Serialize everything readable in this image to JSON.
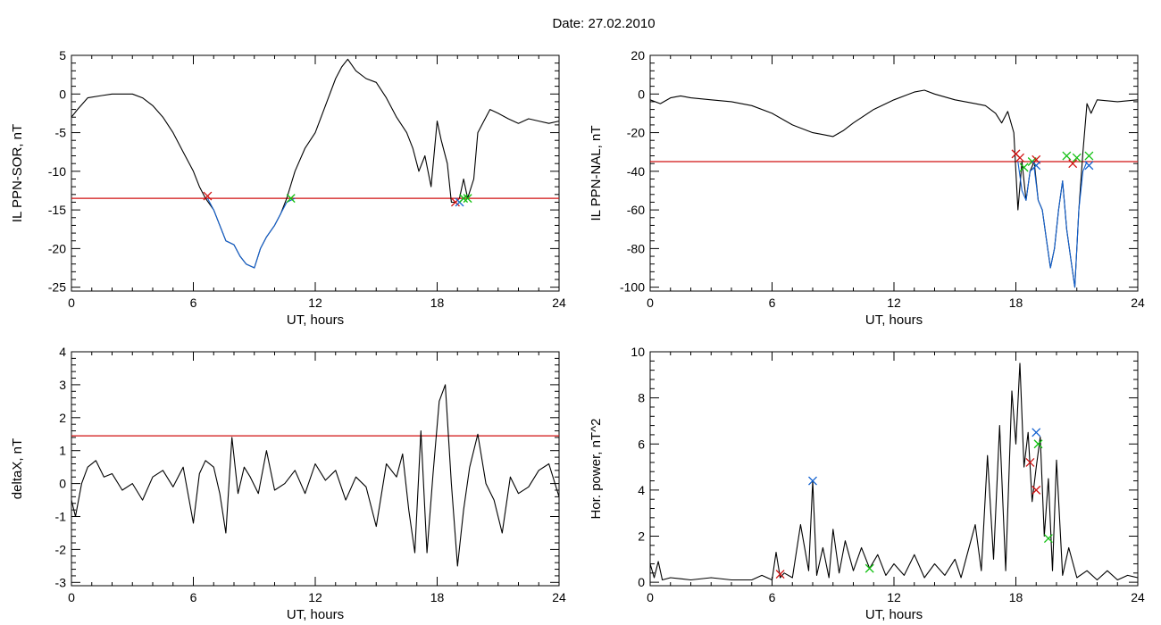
{
  "figure": {
    "title": "Date:  27.02.2010"
  },
  "colors": {
    "trace": "#000000",
    "threshold": "#d01010",
    "highlight": "#1060d0",
    "marker_red": "#d01010",
    "marker_green": "#10c010",
    "marker_blue": "#1060d0"
  },
  "chart_data": [
    {
      "type": "line",
      "xlabel": "UT, hours",
      "ylabel": "IL PPN-SOR, nT",
      "xlim": [
        0,
        24
      ],
      "ylim": [
        -25.5,
        5
      ],
      "xticks": [
        0,
        6,
        12,
        18,
        24
      ],
      "yticks": [
        5,
        0,
        -5,
        -10,
        -15,
        -20,
        -25
      ],
      "threshold": -13.5,
      "series": [
        {
          "color": "black",
          "x": [
            0,
            0.3,
            0.8,
            1.5,
            2,
            2.5,
            3,
            3.5,
            4,
            4.5,
            5,
            5.5,
            6,
            6.3,
            6.6,
            7,
            7.3,
            7.6,
            8,
            8.3,
            8.6,
            9,
            9.3,
            9.6,
            10,
            10.3,
            10.6,
            11,
            11.5,
            12,
            12.5,
            13,
            13.3,
            13.6,
            14,
            14.5,
            15,
            15.5,
            16,
            16.5,
            16.8,
            17.1,
            17.4,
            17.7,
            18,
            18.2,
            18.5,
            18.7,
            18.9,
            19.1,
            19.3,
            19.5,
            19.8,
            20,
            20.3,
            20.6,
            21,
            21.5,
            22,
            22.5,
            23,
            23.5,
            24
          ],
          "y": [
            -3,
            -2,
            -0.5,
            -0.2,
            0,
            0,
            0,
            -0.5,
            -1.5,
            -3,
            -5,
            -7.5,
            -10,
            -12,
            -13.5,
            -15,
            -17,
            -19,
            -19.5,
            -21,
            -22,
            -22.5,
            -20,
            -18.5,
            -17,
            -15.5,
            -13.5,
            -10,
            -7,
            -5,
            -1.5,
            2,
            3.5,
            4.5,
            3,
            2,
            1.5,
            -0.5,
            -3,
            -5,
            -7,
            -10,
            -8,
            -12,
            -3.5,
            -6,
            -9,
            -14,
            -14,
            -13.5,
            -11,
            -13.5,
            -11,
            -5,
            -3.5,
            -2,
            -2.5,
            -3.2,
            -3.8,
            -3.2,
            -3.5,
            -3.8,
            -3.5
          ]
        },
        {
          "color": "blue",
          "x": [
            6.7,
            7,
            7.3,
            7.6,
            8,
            8.3,
            8.6,
            9,
            9.3,
            9.6,
            10,
            10.3,
            10.6,
            11
          ],
          "y": [
            -13.5,
            -15,
            -17,
            -19,
            -19.5,
            -21,
            -22,
            -22.5,
            -20,
            -18.5,
            -17,
            -15.5,
            -14,
            -13.5
          ]
        }
      ],
      "markers": [
        {
          "x": 6.7,
          "y": -13.2,
          "color": "red"
        },
        {
          "x": 10.8,
          "y": -13.5,
          "color": "green"
        },
        {
          "x": 18.9,
          "y": -14,
          "color": "red"
        },
        {
          "x": 19.1,
          "y": -14,
          "color": "blue"
        },
        {
          "x": 19.3,
          "y": -13.5,
          "color": "green"
        },
        {
          "x": 19.5,
          "y": -13.5,
          "color": "green"
        }
      ]
    },
    {
      "type": "line",
      "xlabel": "UT, hours",
      "ylabel": "IL PPN-NAL, nT",
      "xlim": [
        0,
        24
      ],
      "ylim": [
        -102,
        20
      ],
      "xticks": [
        0,
        6,
        12,
        18,
        24
      ],
      "yticks": [
        20,
        0,
        -20,
        -40,
        -60,
        -80,
        -100
      ],
      "threshold": -35,
      "series": [
        {
          "color": "black",
          "x": [
            0,
            0.5,
            1,
            1.5,
            2,
            3,
            4,
            5,
            6,
            7,
            8,
            8.5,
            9,
            9.5,
            10,
            11,
            12,
            13,
            13.5,
            14,
            15,
            16,
            16.5,
            17,
            17.3,
            17.6,
            17.9,
            18.1,
            18.3,
            18.5,
            18.7,
            18.9,
            19.1,
            19.3,
            19.5,
            19.7,
            19.9,
            20.1,
            20.3,
            20.5,
            20.7,
            20.9,
            21.1,
            21.3,
            21.5,
            21.7,
            22,
            23,
            24
          ],
          "y": [
            -3,
            -5,
            -2,
            -1,
            -2,
            -3,
            -4,
            -6,
            -10,
            -16,
            -20,
            -21,
            -22,
            -19,
            -15,
            -8,
            -3,
            1,
            2,
            0,
            -3,
            -5,
            -6,
            -10,
            -15,
            -9,
            -20,
            -60,
            -35,
            -55,
            -40,
            -35,
            -55,
            -60,
            -75,
            -90,
            -80,
            -60,
            -45,
            -70,
            -85,
            -100,
            -60,
            -30,
            -5,
            -10,
            -3,
            -4,
            -3
          ]
        },
        {
          "color": "blue",
          "x": [
            18.1,
            18.3,
            18.5,
            18.7,
            18.9,
            19.1,
            19.3,
            19.5,
            19.7,
            19.9,
            20.1,
            20.3,
            20.5,
            20.7,
            20.9,
            21.1,
            21.3,
            21.5
          ],
          "y": [
            -35,
            -50,
            -55,
            -40,
            -38,
            -55,
            -60,
            -75,
            -90,
            -80,
            -60,
            -45,
            -70,
            -85,
            -100,
            -60,
            -40,
            -35
          ]
        }
      ],
      "markers": [
        {
          "x": 18.0,
          "y": -31,
          "color": "red"
        },
        {
          "x": 18.2,
          "y": -33,
          "color": "red"
        },
        {
          "x": 18.4,
          "y": -38,
          "color": "green"
        },
        {
          "x": 18.8,
          "y": -35,
          "color": "green"
        },
        {
          "x": 19.0,
          "y": -34,
          "color": "red"
        },
        {
          "x": 19.0,
          "y": -37,
          "color": "blue"
        },
        {
          "x": 20.5,
          "y": -32,
          "color": "green"
        },
        {
          "x": 20.8,
          "y": -36,
          "color": "red"
        },
        {
          "x": 21.0,
          "y": -33,
          "color": "green"
        },
        {
          "x": 21.6,
          "y": -32,
          "color": "green"
        },
        {
          "x": 21.6,
          "y": -37,
          "color": "blue"
        }
      ]
    },
    {
      "type": "line",
      "xlabel": "UT, hours",
      "ylabel": "deltaX, nT",
      "xlim": [
        0,
        24
      ],
      "ylim": [
        -3.1,
        4
      ],
      "xticks": [
        0,
        6,
        12,
        18,
        24
      ],
      "yticks": [
        4,
        3,
        2,
        1,
        0,
        -1,
        -2,
        -3
      ],
      "threshold": 1.45,
      "series": [
        {
          "color": "black",
          "x": [
            0,
            0.2,
            0.5,
            0.8,
            1.2,
            1.6,
            2,
            2.5,
            3,
            3.5,
            4,
            4.5,
            5,
            5.5,
            6,
            6.3,
            6.6,
            7,
            7.3,
            7.6,
            7.9,
            8.2,
            8.5,
            8.8,
            9.2,
            9.6,
            10,
            10.5,
            11,
            11.5,
            12,
            12.5,
            13,
            13.5,
            14,
            14.5,
            15,
            15.5,
            16,
            16.3,
            16.6,
            16.9,
            17.2,
            17.5,
            17.8,
            18.1,
            18.4,
            18.7,
            19,
            19.3,
            19.6,
            20,
            20.4,
            20.8,
            21.2,
            21.6,
            22,
            22.5,
            23,
            23.5,
            24
          ],
          "y": [
            -0.5,
            -1,
            0,
            0.5,
            0.7,
            0.2,
            0.3,
            -0.2,
            0,
            -0.5,
            0.2,
            0.4,
            -0.1,
            0.5,
            -1.2,
            0.3,
            0.7,
            0.5,
            -0.3,
            -1.5,
            1.4,
            -0.3,
            0.5,
            0.2,
            -0.3,
            1,
            -0.2,
            0,
            0.4,
            -0.3,
            0.6,
            0.1,
            0.4,
            -0.5,
            0.2,
            -0.1,
            -1.3,
            0.6,
            0.2,
            0.9,
            -0.8,
            -2.1,
            1.6,
            -2.1,
            0.3,
            2.5,
            3,
            0,
            -2.5,
            -0.8,
            0.5,
            1.5,
            0,
            -0.5,
            -1.5,
            0.2,
            -0.3,
            -0.1,
            0.4,
            0.6,
            -0.4
          ]
        }
      ],
      "markers": []
    },
    {
      "type": "line",
      "xlabel": "UT, hours",
      "ylabel": "Hor. power, nT^2",
      "xlim": [
        0,
        24
      ],
      "ylim": [
        -0.15,
        10
      ],
      "xticks": [
        0,
        6,
        12,
        18,
        24
      ],
      "yticks": [
        10,
        8,
        6,
        4,
        2,
        0
      ],
      "threshold": null,
      "series": [
        {
          "color": "black",
          "x": [
            0,
            0.2,
            0.4,
            0.6,
            1,
            2,
            3,
            4,
            5,
            5.5,
            6,
            6.2,
            6.4,
            6.6,
            7,
            7.4,
            7.8,
            8,
            8.2,
            8.5,
            8.8,
            9,
            9.3,
            9.6,
            10,
            10.4,
            10.8,
            11.2,
            11.6,
            12,
            12.5,
            13,
            13.5,
            14,
            14.5,
            15,
            15.3,
            15.6,
            16,
            16.3,
            16.6,
            16.9,
            17.2,
            17.5,
            17.8,
            18,
            18.2,
            18.4,
            18.6,
            18.8,
            19,
            19.2,
            19.4,
            19.6,
            19.8,
            20,
            20.3,
            20.6,
            21,
            21.5,
            22,
            22.5,
            23,
            23.5,
            24
          ],
          "y": [
            0.8,
            0.2,
            0.9,
            0.1,
            0.2,
            0.1,
            0.2,
            0.1,
            0.1,
            0.3,
            0.1,
            1.3,
            0.2,
            0.4,
            0.2,
            2.5,
            0.5,
            4.4,
            0.3,
            1.5,
            0.2,
            2.3,
            0.4,
            1.8,
            0.5,
            1.5,
            0.6,
            1.2,
            0.3,
            0.8,
            0.3,
            1.2,
            0.2,
            0.8,
            0.3,
            1,
            0.2,
            1.2,
            2.5,
            0.5,
            5.5,
            1,
            6.8,
            0.5,
            8.3,
            6,
            9.5,
            5,
            6.5,
            3.5,
            5,
            6.3,
            2,
            4.5,
            0.5,
            5.3,
            0.3,
            1.5,
            0.2,
            0.5,
            0.1,
            0.5,
            0.1,
            0.3,
            0.2
          ]
        }
      ],
      "markers": [
        {
          "x": 6.4,
          "y": 0.35,
          "color": "red"
        },
        {
          "x": 8.0,
          "y": 4.4,
          "color": "blue"
        },
        {
          "x": 10.8,
          "y": 0.6,
          "color": "green"
        },
        {
          "x": 18.7,
          "y": 5.2,
          "color": "red"
        },
        {
          "x": 19.0,
          "y": 6.5,
          "color": "blue"
        },
        {
          "x": 19.1,
          "y": 6.0,
          "color": "green"
        },
        {
          "x": 19.0,
          "y": 4.0,
          "color": "red"
        },
        {
          "x": 19.6,
          "y": 1.9,
          "color": "green"
        }
      ]
    }
  ]
}
